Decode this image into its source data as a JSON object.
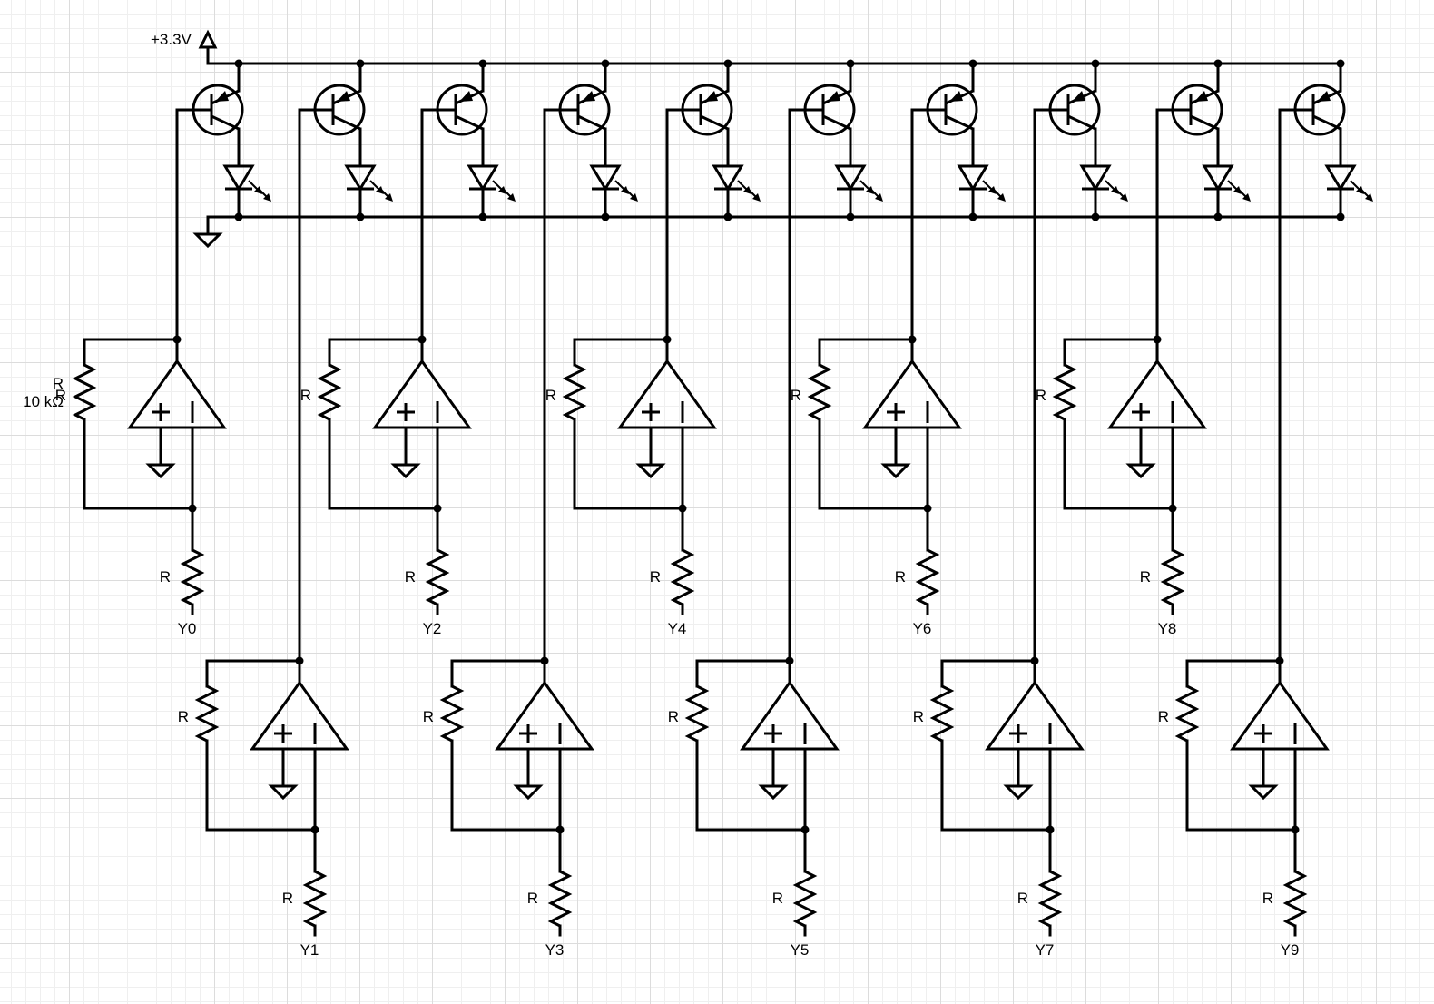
{
  "supply_label": "+3.3V",
  "feedback_resistor": {
    "label": "R",
    "value": "10 kΩ"
  },
  "resistor_label": "R",
  "channels": [
    {
      "output": "Y0"
    },
    {
      "output": "Y1"
    },
    {
      "output": "Y2"
    },
    {
      "output": "Y3"
    },
    {
      "output": "Y4"
    },
    {
      "output": "Y5"
    },
    {
      "output": "Y6"
    },
    {
      "output": "Y7"
    },
    {
      "output": "Y8"
    },
    {
      "output": "Y9"
    }
  ],
  "colors": {
    "ink": "#000000",
    "grid_major": "#dcdcdc",
    "grid_minor": "#efefef",
    "background": "#ffffff"
  }
}
